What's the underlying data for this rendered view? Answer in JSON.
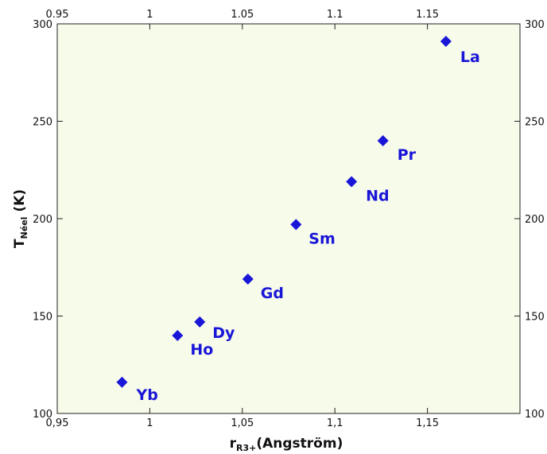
{
  "chart_data": {
    "type": "scatter",
    "ylabel": {
      "main": "T",
      "sub": "Néel",
      "unit": " (K)"
    },
    "xlabel": {
      "main": "r",
      "sub": "R3+",
      "unit": "(Angström)"
    },
    "xlim": [
      0.95,
      1.2
    ],
    "ylim": [
      100,
      300
    ],
    "x_ticks_bottom": [
      "0,95",
      "1",
      "1,05",
      "1,1",
      "1,15"
    ],
    "x_ticks_top": [
      "0.95",
      "1",
      "1.05",
      "1.1",
      "1.15"
    ],
    "x_tick_values": [
      0.95,
      1.0,
      1.05,
      1.1,
      1.15
    ],
    "y_ticks": [
      "100",
      "150",
      "200",
      "250",
      "300"
    ],
    "y_tick_values": [
      100,
      150,
      200,
      250,
      300
    ],
    "grid": false,
    "background_color": "#f7fbea",
    "marker": "diamond",
    "marker_color": "#1a16d8",
    "label_color": "#1a16d8",
    "points": [
      {
        "label": "Yb",
        "x": 0.985,
        "y": 116
      },
      {
        "label": "Ho",
        "x": 1.015,
        "y": 140
      },
      {
        "label": "Dy",
        "x": 1.027,
        "y": 147
      },
      {
        "label": "Gd",
        "x": 1.053,
        "y": 169
      },
      {
        "label": "Sm",
        "x": 1.079,
        "y": 197
      },
      {
        "label": "Nd",
        "x": 1.109,
        "y": 219
      },
      {
        "label": "Pr",
        "x": 1.126,
        "y": 240
      },
      {
        "label": "La",
        "x": 1.16,
        "y": 291
      }
    ]
  }
}
